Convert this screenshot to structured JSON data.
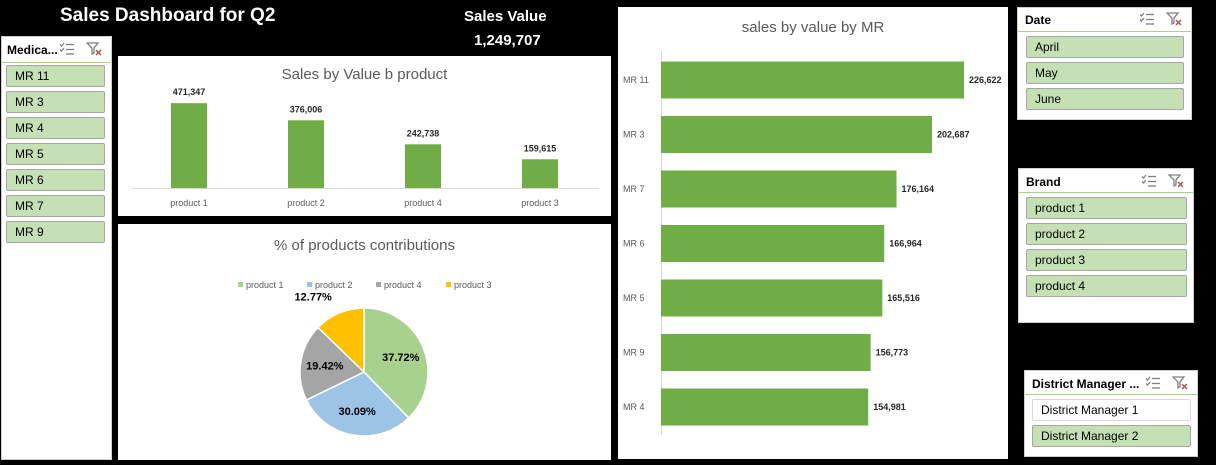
{
  "header": {
    "title": "Sales Dashboard for Q2",
    "sales_value_label": "Sales Value",
    "sales_value": "1,249,707"
  },
  "colors": {
    "bar_green": "#70ad47",
    "slicer_selected": "#c5e0b4",
    "pie_product1": "#a9d18e",
    "pie_product2": "#9dc3e6",
    "pie_product3": "#ffc000",
    "pie_product4": "#a5a5a5"
  },
  "slicers": {
    "medical_rep": {
      "title": "Medica...",
      "items": [
        "MR 11",
        "MR 3",
        "MR 4",
        "MR 5",
        "MR 6",
        "MR 7",
        "MR 9"
      ]
    },
    "date": {
      "title": "Date",
      "items": [
        "April",
        "May",
        "June"
      ]
    },
    "brand": {
      "title": "Brand",
      "items": [
        "product 1",
        "product 2",
        "product 3",
        "product 4"
      ]
    },
    "district_manager": {
      "title": "District Manager ...",
      "items": [
        "District Manager 1",
        "District Manager 2"
      ],
      "selected": [
        false,
        true
      ]
    }
  },
  "chart_data": [
    {
      "type": "bar",
      "title": "Sales by Value b product",
      "categories": [
        "product 1",
        "product 2",
        "product 4",
        "product 3"
      ],
      "values": [
        471347,
        376006,
        242738,
        159615
      ],
      "labels": [
        "471,347",
        "376,006",
        "242,738",
        "159,615"
      ],
      "ylim": [
        0,
        500000
      ],
      "grid": false
    },
    {
      "type": "pie",
      "title": "% of products contributions",
      "legend": [
        "product 1",
        "product 2",
        "product 4",
        "product 3"
      ],
      "legend_position": "top",
      "values": [
        37.72,
        30.09,
        19.42,
        12.77
      ],
      "labels": [
        "37.72%",
        "30.09%",
        "19.42%",
        "12.77%"
      ]
    },
    {
      "type": "bar",
      "orientation": "horizontal",
      "title": "sales by value by MR",
      "categories": [
        "MR 11",
        "MR 3",
        "MR 7",
        "MR 6",
        "MR 5",
        "MR 9",
        "MR 4"
      ],
      "values": [
        226622,
        202687,
        176164,
        166964,
        165516,
        156773,
        154981
      ],
      "labels": [
        "226,622",
        "202,687",
        "176,164",
        "166,964",
        "165,516",
        "156,773",
        "154,981"
      ],
      "xlim": [
        0,
        230000
      ],
      "grid": false
    }
  ]
}
